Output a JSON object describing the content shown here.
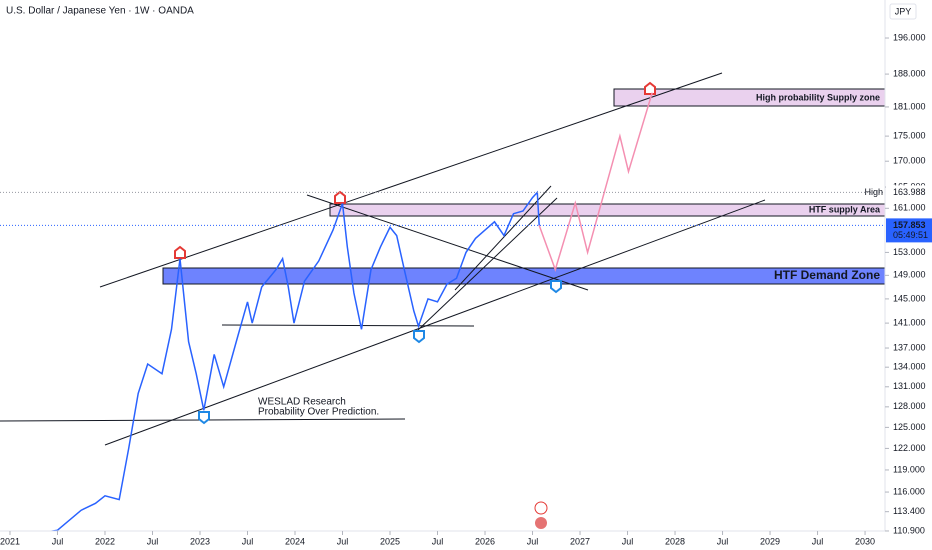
{
  "chart_data": {
    "type": "line",
    "title": "U.S. Dollar / Japanese Yen · 1W · OANDA",
    "currency": "JPY",
    "log_scale": true,
    "grid": false,
    "xlim": [
      2020.895,
      2030.21
    ],
    "ylim": [
      109.75,
      204.8
    ],
    "xticks": [
      {
        "value": 2021,
        "label": "2021"
      },
      {
        "value": 2021.5,
        "label": "Jul"
      },
      {
        "value": 2022,
        "label": "2022"
      },
      {
        "value": 2022.5,
        "label": "Jul"
      },
      {
        "value": 2023,
        "label": "2023"
      },
      {
        "value": 2023.5,
        "label": "Jul"
      },
      {
        "value": 2024,
        "label": "2024"
      },
      {
        "value": 2024.5,
        "label": "Jul"
      },
      {
        "value": 2025,
        "label": "2025"
      },
      {
        "value": 2025.5,
        "label": "Jul"
      },
      {
        "value": 2026,
        "label": "2026"
      },
      {
        "value": 2026.5,
        "label": "Jul"
      },
      {
        "value": 2027,
        "label": "2027"
      },
      {
        "value": 2027.5,
        "label": "Jul"
      },
      {
        "value": 2028,
        "label": "2028"
      },
      {
        "value": 2028.5,
        "label": "Jul"
      },
      {
        "value": 2029,
        "label": "2029"
      },
      {
        "value": 2029.5,
        "label": "Jul"
      },
      {
        "value": 2030,
        "label": "2030"
      }
    ],
    "yticks": [
      {
        "value": 196,
        "label": "196.000"
      },
      {
        "value": 188,
        "label": "188.000"
      },
      {
        "value": 181,
        "label": "181.000"
      },
      {
        "value": 175,
        "label": "175.000"
      },
      {
        "value": 170,
        "label": "170.000"
      },
      {
        "value": 165,
        "label": "165.000"
      },
      {
        "value": 161,
        "label": "161.000"
      },
      {
        "value": 153,
        "label": "153.000"
      },
      {
        "value": 149,
        "label": "149.000"
      },
      {
        "value": 145,
        "label": "145.000"
      },
      {
        "value": 141,
        "label": "141.000"
      },
      {
        "value": 137,
        "label": "137.000"
      },
      {
        "value": 134,
        "label": "134.000"
      },
      {
        "value": 131,
        "label": "131.000"
      },
      {
        "value": 128,
        "label": "128.000"
      },
      {
        "value": 125,
        "label": "125.000"
      },
      {
        "value": 122,
        "label": "122.000"
      },
      {
        "value": 119,
        "label": "119.000"
      },
      {
        "value": 116,
        "label": "116.000"
      },
      {
        "value": 113.4,
        "label": "113.400"
      },
      {
        "value": 110.9,
        "label": "110.900"
      }
    ],
    "series": [
      {
        "color": "#2962ff",
        "x": [
          2021.25,
          2021.5,
          2021.75,
          2021.9,
          2022.0,
          2022.15,
          2022.25,
          2022.35,
          2022.45,
          2022.6,
          2022.7,
          2022.79,
          2022.88,
          2022.96,
          2023.04,
          2023.15,
          2023.25,
          2023.4,
          2023.5,
          2023.55,
          2023.65,
          2023.8,
          2023.87,
          2023.93,
          2023.99,
          2024.1,
          2024.25,
          2024.4,
          2024.5,
          2024.55,
          2024.62,
          2024.7,
          2024.8,
          2024.9,
          2025.0,
          2025.07,
          2025.15,
          2025.25,
          2025.3,
          2025.4,
          2025.5,
          2025.6,
          2025.7,
          2025.8,
          2025.9,
          2026.0,
          2026.1,
          2026.2,
          2026.3,
          2026.4,
          2026.5,
          2026.55,
          2026.57
        ],
        "values": [
          110.5,
          111,
          113.6,
          114.5,
          115.5,
          115,
          122,
          130,
          134.5,
          133,
          140,
          151.9,
          138,
          133,
          127.5,
          136,
          131,
          139,
          144.5,
          141,
          147,
          150,
          151.9,
          147,
          141,
          148,
          151.5,
          157,
          161.9,
          154,
          146,
          140,
          150,
          154,
          157.5,
          156,
          150,
          143,
          140.5,
          145,
          144.5,
          147.5,
          148.5,
          153,
          155.5,
          157,
          158.5,
          156,
          160,
          160.5,
          163,
          163.988,
          157.853
        ]
      },
      {
        "color": "#f48fb1",
        "x": [
          2026.57,
          2026.74,
          2026.95,
          2027.08,
          2027.42,
          2027.51,
          2027.76
        ],
        "values": [
          157.853,
          150,
          162,
          153,
          175,
          168,
          184
        ]
      }
    ],
    "high": {
      "label": "High",
      "value": 163.988,
      "value_label": "163.988"
    },
    "last": {
      "value": 157.853,
      "value_label": "157.853",
      "countdown": "05:49:51"
    },
    "annotations": {
      "supply_zone": "High probability Supply zone",
      "supply_area": "HTF supply Area",
      "demand_zone": "HTF Demand Zone",
      "note_line1": "WESLAD Research",
      "note_line2": "Probability Over Prediction."
    }
  }
}
